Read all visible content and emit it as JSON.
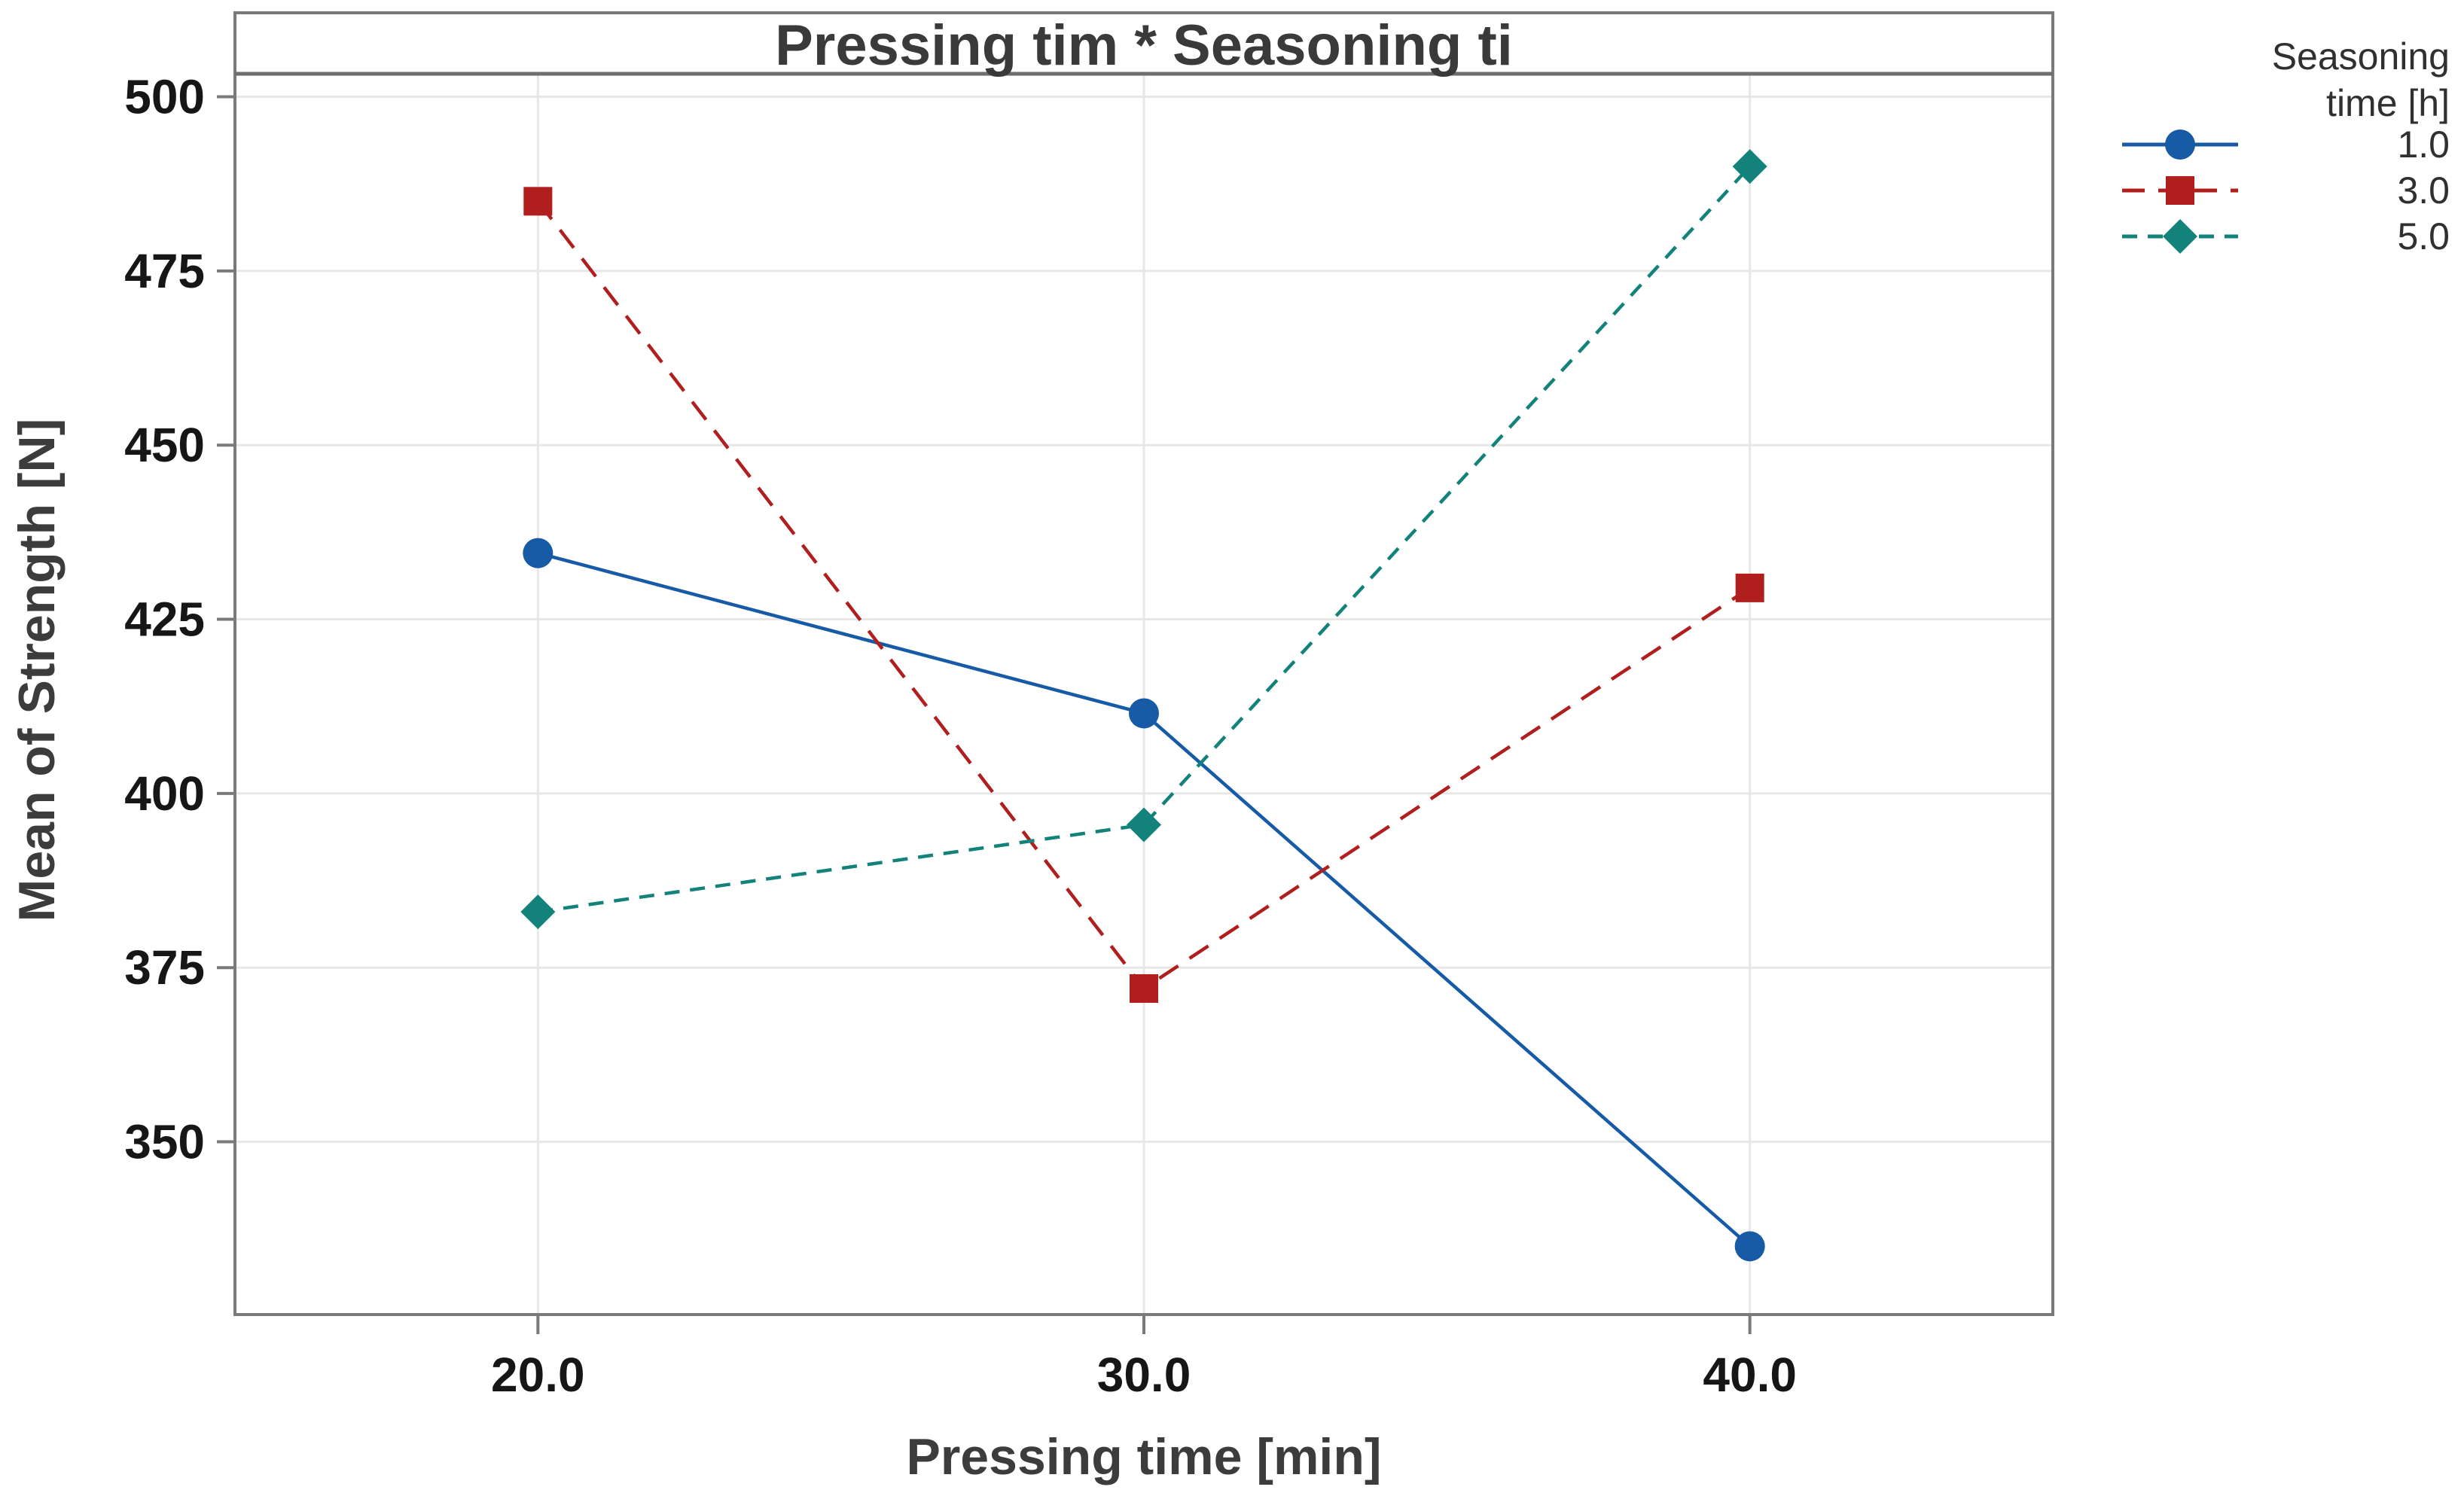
{
  "window": {
    "background": "#ffffff"
  },
  "colors": {
    "frame": "#7a7a7a",
    "title_separator": "#6e6e6e",
    "gridline": "#e7e7e7",
    "tick": "#7a7a7a",
    "series_blue": "#175ba6",
    "series_red": "#b01e1e",
    "series_teal": "#12827b"
  },
  "chart_data": {
    "type": "line",
    "title": "Pressing tim * Seasoning ti",
    "xlabel": "Pressing time [min]",
    "ylabel": "Mean of Strength [N]",
    "legend_title_line1": "Seasoning",
    "legend_title_line2": "time [h]",
    "legend_position": "right-outside",
    "grid": "both-very-light",
    "x": [
      20.0,
      30.0,
      40.0
    ],
    "x_tick_labels": [
      "20.0",
      "30.0",
      "40.0"
    ],
    "xlim": [
      15.0,
      45.0
    ],
    "y_ticks": [
      350,
      375,
      400,
      425,
      450,
      475,
      500
    ],
    "y_tick_labels": [
      "350",
      "375",
      "400",
      "425",
      "450",
      "475",
      "500"
    ],
    "ylim": [
      325.2,
      503.3
    ],
    "series": [
      {
        "name": "1.0",
        "color": "#175ba6",
        "marker": "circle",
        "line": "solid",
        "values": [
          434.5,
          411.5,
          335.0
        ]
      },
      {
        "name": "3.0",
        "color": "#b01e1e",
        "marker": "square",
        "line": "dashed",
        "values": [
          485.0,
          372.0,
          429.5
        ]
      },
      {
        "name": "5.0",
        "color": "#12827b",
        "marker": "diamond",
        "line": "dashed-short",
        "values": [
          383.0,
          395.5,
          490.0
        ]
      }
    ]
  }
}
